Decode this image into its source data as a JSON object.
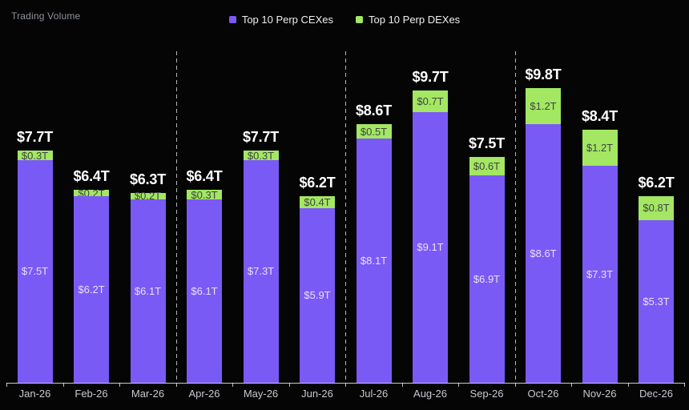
{
  "title": "Trading Volume",
  "legend": [
    {
      "label": "Top 10 Perp CEXes",
      "color": "#7A5AF5"
    },
    {
      "label": "Top 10 Perp DEXes",
      "color": "#A3E763"
    }
  ],
  "chart_data": {
    "type": "bar",
    "stacked": true,
    "title": "Trading Volume",
    "unit": "$T",
    "categories": [
      "Jan-26",
      "Feb-26",
      "Mar-26",
      "Apr-26",
      "May-26",
      "Jun-26",
      "Jul-26",
      "Aug-26",
      "Sep-26",
      "Oct-26",
      "Nov-26",
      "Dec-26"
    ],
    "series": [
      {
        "name": "Top 10 Perp CEXes",
        "color": "#7A5AF5",
        "label_color": "#E6E1F9",
        "values": [
          7.5,
          6.2,
          6.1,
          6.1,
          7.3,
          5.9,
          8.1,
          9.1,
          6.9,
          8.6,
          7.3,
          5.3
        ],
        "labels": [
          "$7.5T",
          "$6.2T",
          "$6.1T",
          "$6.1T",
          "$7.3T",
          "$5.9T",
          "$8.1T",
          "$9.1T",
          "$6.9T",
          "$8.6T",
          "$7.3T",
          "$5.3T"
        ]
      },
      {
        "name": "Top 10 Perp DEXes",
        "color": "#A3E763",
        "label_color": "#3E4540",
        "values": [
          0.3,
          0.2,
          0.2,
          0.3,
          0.3,
          0.4,
          0.5,
          0.7,
          0.6,
          1.2,
          1.2,
          0.8
        ],
        "labels": [
          "$0.3T",
          "$0.2T",
          "$0.2T",
          "$0.3T",
          "$0.3T",
          "$0.4T",
          "$0.5T",
          "$0.7T",
          "$0.6T",
          "$1.2T",
          "$1.2T",
          "$0.8T"
        ]
      }
    ],
    "totals": [
      7.7,
      6.4,
      6.3,
      6.4,
      7.7,
      6.2,
      8.6,
      9.7,
      7.5,
      9.8,
      8.4,
      6.2
    ],
    "total_labels": [
      "$7.7T",
      "$6.4T",
      "$6.3T",
      "$6.4T",
      "$7.7T",
      "$6.2T",
      "$8.6T",
      "$9.7T",
      "$7.5T",
      "$9.8T",
      "$8.4T",
      "$6.2T"
    ],
    "ylim": [
      0,
      11
    ],
    "grid": false,
    "legend_position": "top-center",
    "quarter_separators_after": [
      "Mar-26",
      "Jun-26",
      "Sep-26"
    ]
  }
}
